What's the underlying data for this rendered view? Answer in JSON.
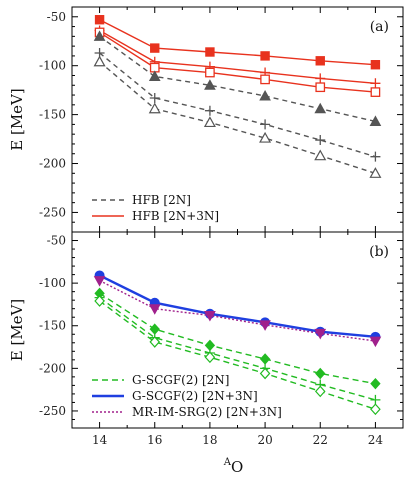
{
  "chart_data": [
    {
      "type": "line",
      "panel_label": "(a)",
      "ylabel": "E [MeV]",
      "xlabel": "",
      "xlim": [
        13,
        25
      ],
      "ylim": [
        -270,
        -40
      ],
      "x_ticks": [
        14,
        16,
        18,
        20,
        22,
        24
      ],
      "y_ticks": [
        -250,
        -200,
        -150,
        -100,
        -50
      ],
      "legend_position": "bottom-left",
      "legend": [
        {
          "label": "HFB [2N]",
          "color": "#555555",
          "dash": "5,4"
        },
        {
          "label": "HFB [2N+3N]",
          "color": "#e8321e",
          "dash": ""
        }
      ],
      "x": [
        14,
        16,
        18,
        20,
        22,
        24
      ],
      "series": [
        {
          "color": "#e8321e",
          "dash": "",
          "marker": "square-filled",
          "values": [
            -53,
            -82,
            -86,
            -90,
            -95,
            -99
          ]
        },
        {
          "color": "#e8321e",
          "dash": "",
          "marker": "plus",
          "values": [
            -64,
            -96,
            -101,
            -107,
            -113,
            -118
          ]
        },
        {
          "color": "#e8321e",
          "dash": "",
          "marker": "square-open",
          "values": [
            -66,
            -102,
            -107,
            -114,
            -122,
            -127
          ]
        },
        {
          "color": "#555555",
          "dash": "5,4",
          "marker": "triangle-filled",
          "values": [
            -70,
            -111,
            -120,
            -131,
            -144,
            -157
          ]
        },
        {
          "color": "#555555",
          "dash": "5,4",
          "marker": "plus",
          "values": [
            -87,
            -133,
            -146,
            -160,
            -176,
            -193
          ]
        },
        {
          "color": "#555555",
          "dash": "5,4",
          "marker": "triangle-open",
          "values": [
            -96,
            -144,
            -158,
            -174,
            -192,
            -210
          ]
        }
      ]
    },
    {
      "type": "line",
      "panel_label": "(b)",
      "ylabel": "E [MeV]",
      "xlabel": "A O",
      "xlabel_sup": "A",
      "xlabel_main": "O",
      "xlim": [
        13,
        25
      ],
      "ylim": [
        -270,
        -40
      ],
      "x_ticks": [
        14,
        16,
        18,
        20,
        22,
        24
      ],
      "y_ticks": [
        -250,
        -200,
        -150,
        -100,
        -50
      ],
      "legend_position": "bottom-left",
      "legend": [
        {
          "label": "G-SCGF(2) [2N]",
          "color": "#22bb22",
          "dash": "6,4",
          "width": 1.4
        },
        {
          "label": "G-SCGF(2) [2N+3N]",
          "color": "#1f3fe0",
          "dash": "",
          "width": 2.4
        },
        {
          "label": "MR-IM-SRG(2) [2N+3N]",
          "color": "#a0208c",
          "dash": "2,2",
          "width": 1.4
        }
      ],
      "x": [
        14,
        16,
        18,
        20,
        22,
        24
      ],
      "series": [
        {
          "color": "#22bb22",
          "dash": "6,4",
          "width": 1.4,
          "marker": "diamond-filled",
          "values": [
            -112,
            -154,
            -173,
            -189,
            -206,
            -218
          ]
        },
        {
          "color": "#22bb22",
          "dash": "6,4",
          "width": 1.4,
          "marker": "plus",
          "values": [
            -117,
            -164,
            -182,
            -200,
            -219,
            -237
          ]
        },
        {
          "color": "#22bb22",
          "dash": "6,4",
          "width": 1.4,
          "marker": "diamond-open",
          "values": [
            -121,
            -169,
            -187,
            -206,
            -227,
            -248
          ]
        },
        {
          "color": "#1f3fe0",
          "dash": "",
          "width": 2.4,
          "marker": "circle-filled",
          "values": [
            -91,
            -123,
            -136,
            -146,
            -157,
            -163
          ]
        },
        {
          "color": "#a0208c",
          "dash": "2,2",
          "width": 1.4,
          "marker": "triangle-down-filled",
          "values": [
            -97,
            -130,
            -138,
            -149,
            -159,
            -168
          ]
        }
      ]
    }
  ]
}
